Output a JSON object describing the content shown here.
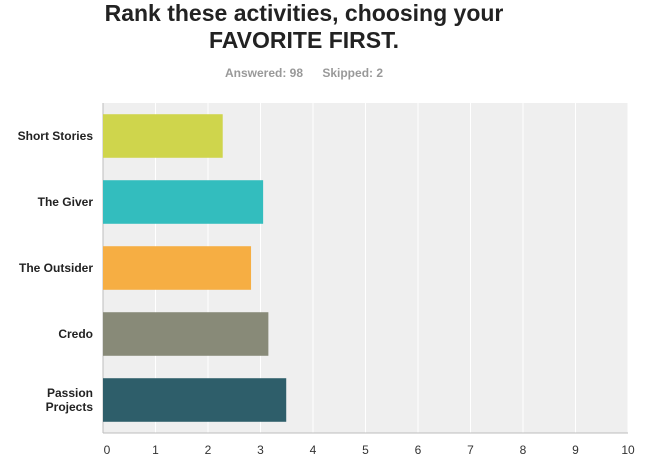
{
  "header": {
    "title_line1": "Rank these activities, choosing your",
    "title_line2": "FAVORITE FIRST.",
    "answered": "Answered: 98",
    "skipped": "Skipped: 2"
  },
  "chart_data": {
    "type": "bar",
    "orientation": "horizontal",
    "categories": [
      [
        "Short Stories"
      ],
      [
        "The Giver"
      ],
      [
        "The Outsider"
      ],
      [
        "Credo"
      ],
      [
        "Passion",
        "Projects"
      ]
    ],
    "values": [
      2.28,
      3.05,
      2.82,
      3.15,
      3.49
    ],
    "colors": [
      "#cfd54c",
      "#33bdbe",
      "#f6ae43",
      "#888a78",
      "#2e5e6a"
    ],
    "xlim": [
      0,
      10
    ],
    "xticks": [
      "0",
      "1",
      "2",
      "3",
      "4",
      "5",
      "6",
      "7",
      "8",
      "9",
      "10"
    ],
    "grid": true,
    "title": "",
    "xlabel": "",
    "ylabel": ""
  }
}
